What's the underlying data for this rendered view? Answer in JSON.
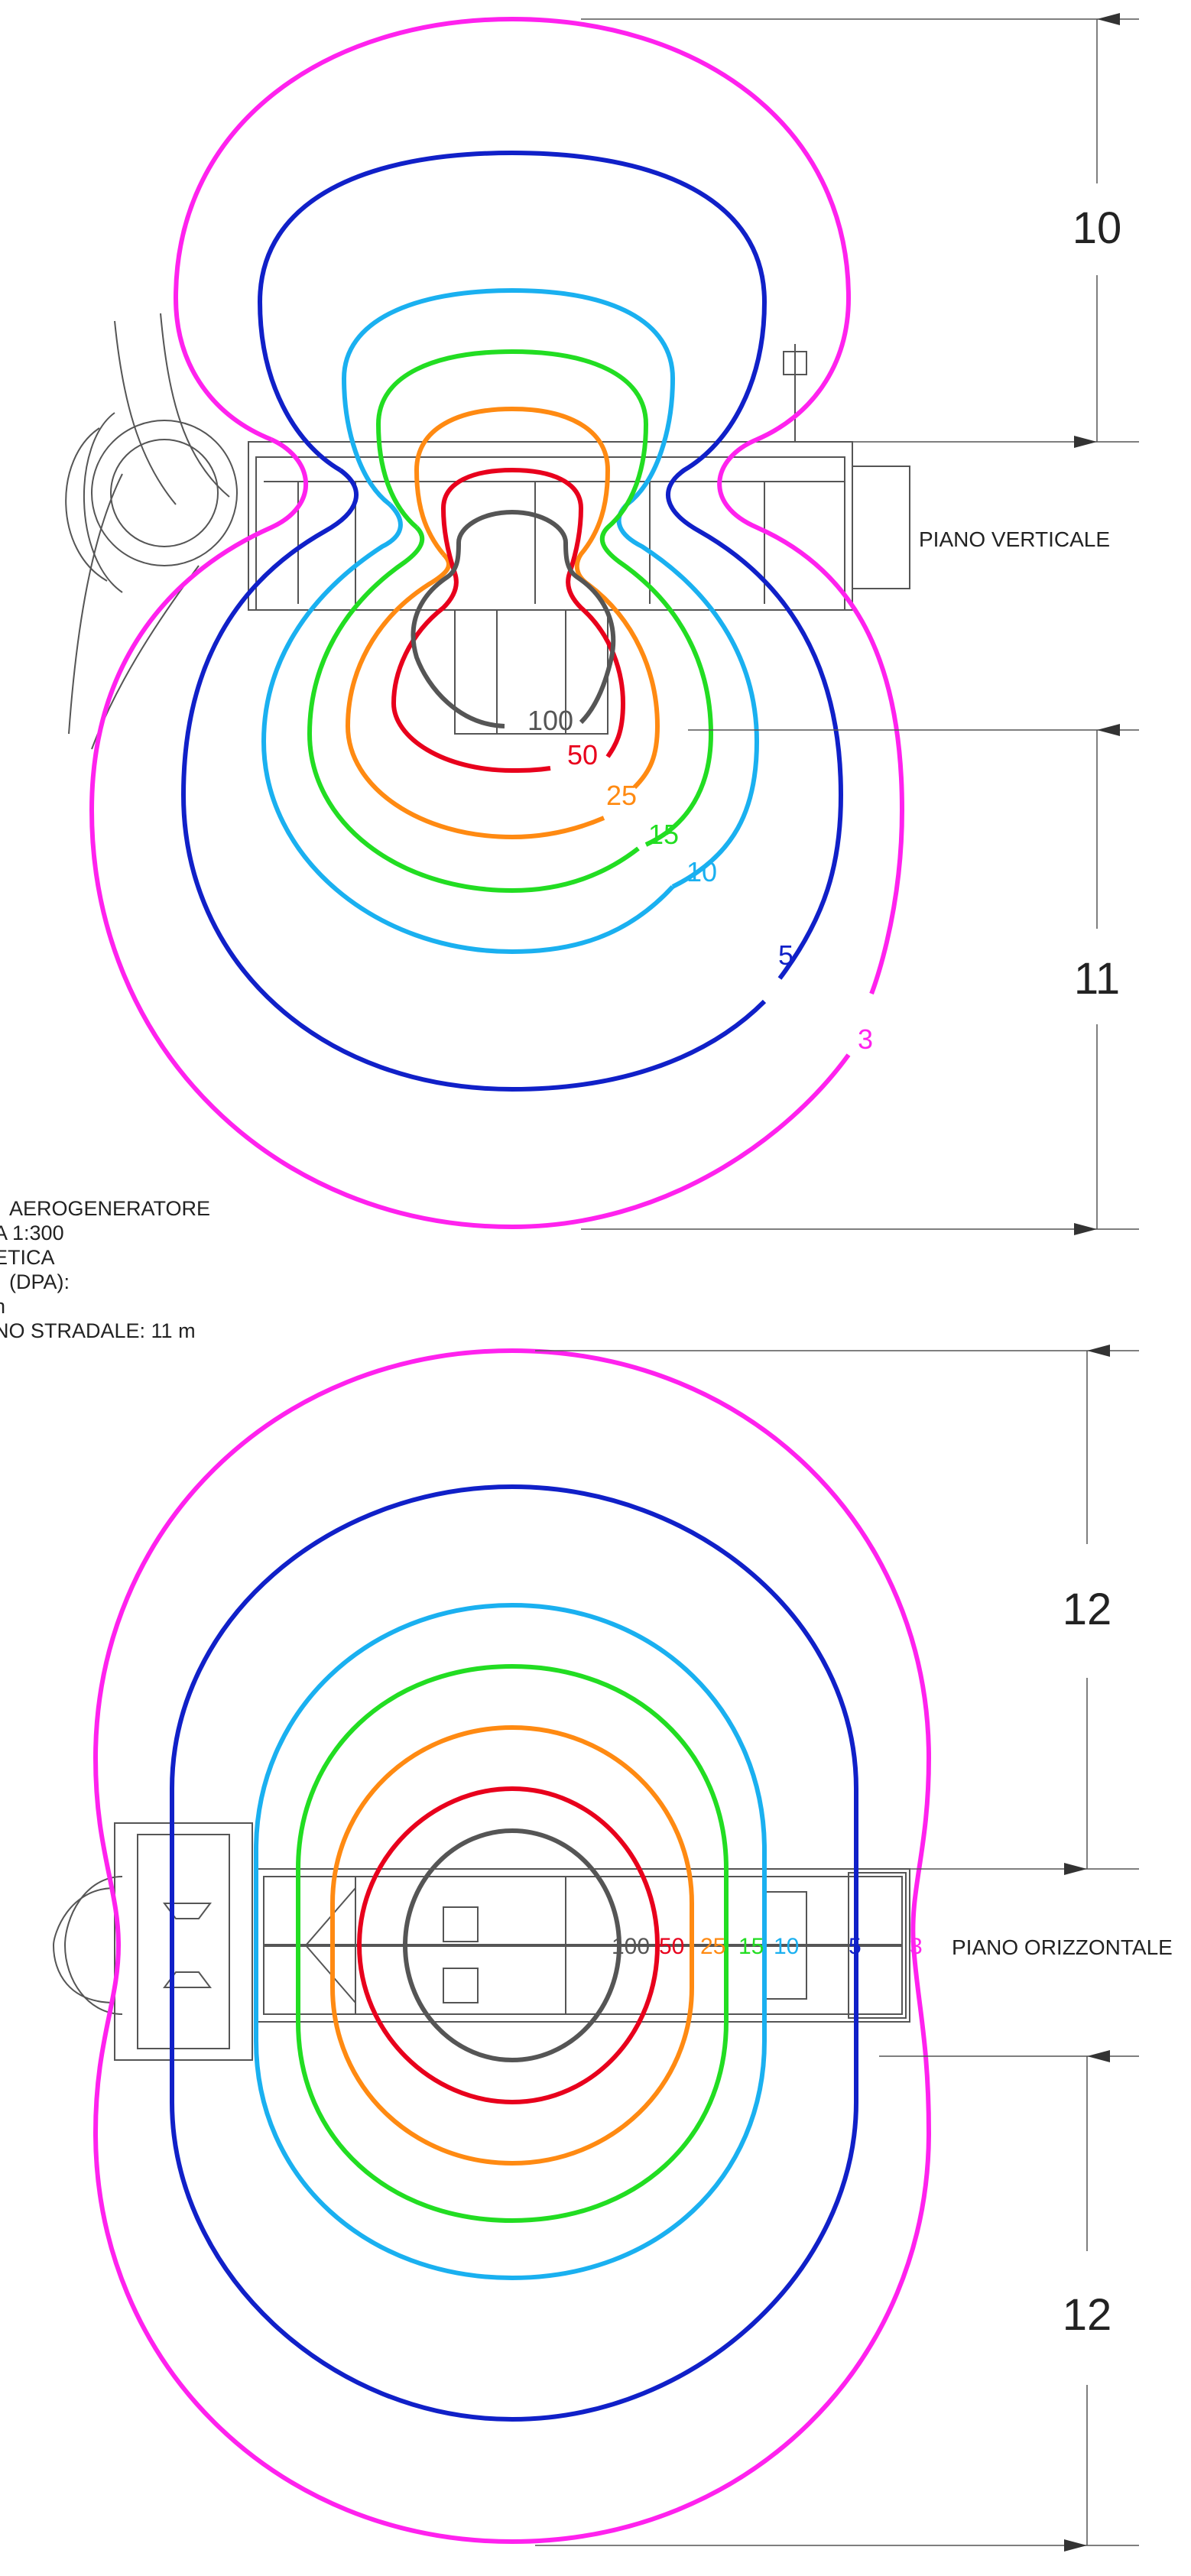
{
  "colors": {
    "c100": "#555555",
    "c50": "#e8001c",
    "c25": "#ff8a12",
    "c15": "#22dd22",
    "c10": "#1ab0f0",
    "c5": "#1020c8",
    "c3": "#ff22ee",
    "drawing": "#444444",
    "dim": "#333333"
  },
  "vertical": {
    "plane_label": "PIANO VERTICALE",
    "contour_labels": {
      "v100": "100",
      "v50": "50",
      "v25": "25",
      "v15": "15",
      "v10": "10",
      "v5": "5",
      "v3": "3"
    },
    "dim_top": "10",
    "dim_bottom": "11"
  },
  "horizontal": {
    "plane_label": "PIANO ORIZZONTALE",
    "contour_labels": {
      "v100": "100",
      "v50": "50",
      "v25": "25",
      "v15": "15",
      "v10": "10",
      "v5": "5",
      "v3": "3"
    },
    "dim_top": "12",
    "dim_bottom": "12"
  },
  "notes": {
    "line1": "AEROGENERATORE",
    "line2": "A 1:300",
    "line3": "ETICA",
    "line4": "(DPA):",
    "line5": "n",
    "line6": "NO STRADALE: 11 m"
  }
}
